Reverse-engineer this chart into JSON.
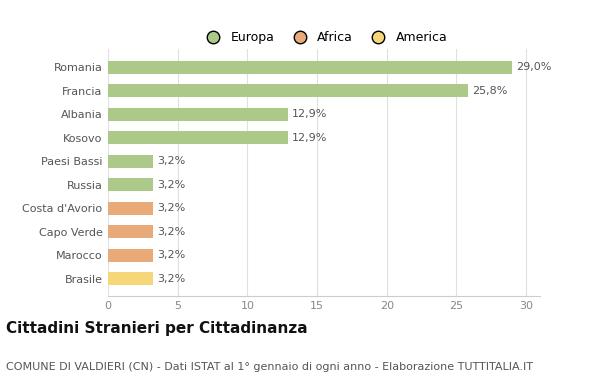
{
  "categories": [
    "Brasile",
    "Marocco",
    "Capo Verde",
    "Costa d'Avorio",
    "Russia",
    "Paesi Bassi",
    "Kosovo",
    "Albania",
    "Francia",
    "Romania"
  ],
  "values": [
    3.2,
    3.2,
    3.2,
    3.2,
    3.2,
    3.2,
    12.9,
    12.9,
    25.8,
    29.0
  ],
  "labels": [
    "3,2%",
    "3,2%",
    "3,2%",
    "3,2%",
    "3,2%",
    "3,2%",
    "12,9%",
    "12,9%",
    "25,8%",
    "29,0%"
  ],
  "colors": [
    "#f5d77a",
    "#e8aa78",
    "#e8aa78",
    "#e8aa78",
    "#adc98a",
    "#adc98a",
    "#adc98a",
    "#adc98a",
    "#adc98a",
    "#adc98a"
  ],
  "legend": [
    {
      "label": "Europa",
      "color": "#adc98a"
    },
    {
      "label": "Africa",
      "color": "#e8aa78"
    },
    {
      "label": "America",
      "color": "#f5d77a"
    }
  ],
  "title": "Cittadini Stranieri per Cittadinanza",
  "subtitle": "COMUNE DI VALDIERI (CN) - Dati ISTAT al 1° gennaio di ogni anno - Elaborazione TUTTITALIA.IT",
  "xlim": [
    0,
    31
  ],
  "xticks": [
    0,
    5,
    10,
    15,
    20,
    25,
    30
  ],
  "background_color": "#ffffff",
  "bar_height": 0.55,
  "title_fontsize": 11,
  "subtitle_fontsize": 8,
  "label_fontsize": 8,
  "tick_fontsize": 8,
  "legend_fontsize": 9
}
